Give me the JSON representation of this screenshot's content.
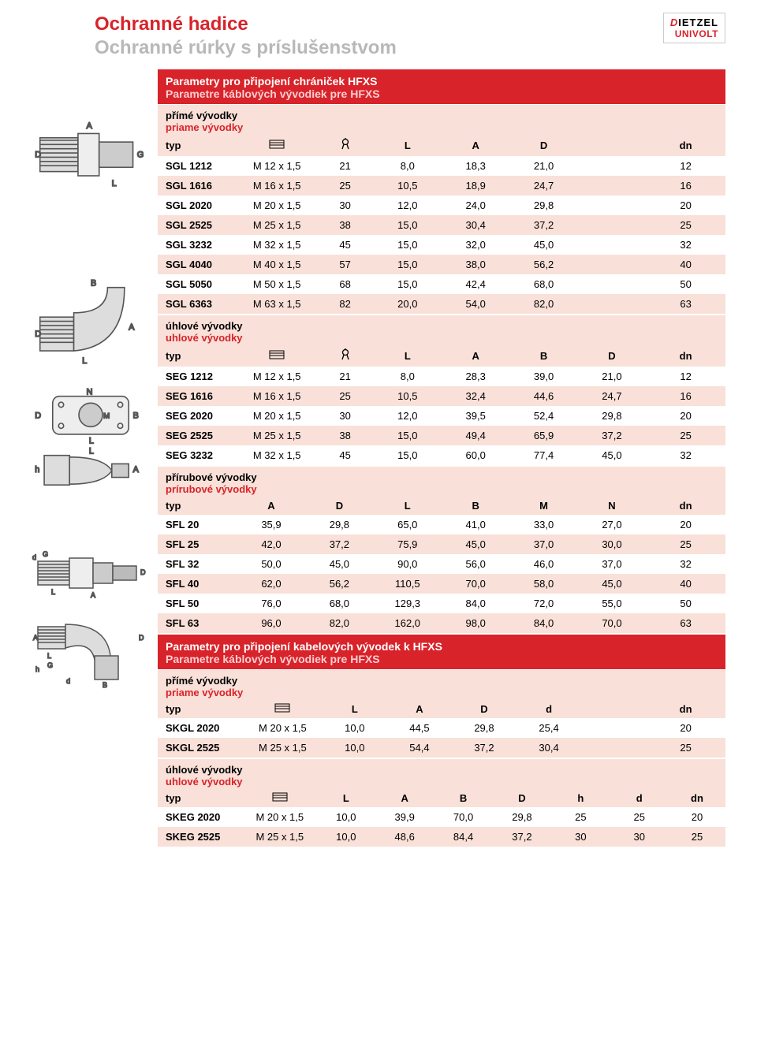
{
  "header": {
    "title_line1": "Ochranné hadice",
    "title_line2": "Ochranné rúrky s príslušenstvom",
    "logo_top": "DIETZEL",
    "logo_bottom": "UNIVOLT"
  },
  "colors": {
    "accent": "#d8232a",
    "subhead_bg": "#f9e0d8",
    "text": "#000000",
    "bg": "#ffffff",
    "grey": "#b8b8b8"
  },
  "section1": {
    "title_cs": "Parametry pro připojení chrániček HFXS",
    "title_sk": "Parametre káblových vývodiek pre HFXS"
  },
  "section2": {
    "title_cs": "Parametry pro připojení kabelových vývodek k HFXS",
    "title_sk": "Parametre káblových vývodiek pre HFXS"
  },
  "tables": {
    "sgl": {
      "sub_cs": "přímé vývodky",
      "sub_sk": "priame vývodky",
      "cols": [
        "typ",
        "thread",
        "wrench",
        "L",
        "A",
        "D",
        "",
        "dn"
      ],
      "rows": [
        [
          "SGL 1212",
          "M 12 x 1,5",
          "21",
          "8,0",
          "18,3",
          "21,0",
          "",
          "12"
        ],
        [
          "SGL 1616",
          "M 16 x 1,5",
          "25",
          "10,5",
          "18,9",
          "24,7",
          "",
          "16"
        ],
        [
          "SGL 2020",
          "M 20 x 1,5",
          "30",
          "12,0",
          "24,0",
          "29,8",
          "",
          "20"
        ],
        [
          "SGL 2525",
          "M 25 x 1,5",
          "38",
          "15,0",
          "30,4",
          "37,2",
          "",
          "25"
        ],
        [
          "SGL 3232",
          "M 32 x 1,5",
          "45",
          "15,0",
          "32,0",
          "45,0",
          "",
          "32"
        ],
        [
          "SGL 4040",
          "M 40 x 1,5",
          "57",
          "15,0",
          "38,0",
          "56,2",
          "",
          "40"
        ],
        [
          "SGL 5050",
          "M 50 x 1,5",
          "68",
          "15,0",
          "42,4",
          "68,0",
          "",
          "50"
        ],
        [
          "SGL 6363",
          "M 63 x 1,5",
          "82",
          "20,0",
          "54,0",
          "82,0",
          "",
          "63"
        ]
      ]
    },
    "seg": {
      "sub_cs": "úhlové vývodky",
      "sub_sk": "uhlové vývodky",
      "cols": [
        "typ",
        "thread",
        "wrench",
        "L",
        "A",
        "B",
        "D",
        "dn"
      ],
      "rows": [
        [
          "SEG 1212",
          "M 12 x 1,5",
          "21",
          "8,0",
          "28,3",
          "39,0",
          "21,0",
          "12"
        ],
        [
          "SEG 1616",
          "M 16 x 1,5",
          "25",
          "10,5",
          "32,4",
          "44,6",
          "24,7",
          "16"
        ],
        [
          "SEG 2020",
          "M 20 x 1,5",
          "30",
          "12,0",
          "39,5",
          "52,4",
          "29,8",
          "20"
        ],
        [
          "SEG 2525",
          "M 25 x 1,5",
          "38",
          "15,0",
          "49,4",
          "65,9",
          "37,2",
          "25"
        ],
        [
          "SEG 3232",
          "M 32 x 1,5",
          "45",
          "15,0",
          "60,0",
          "77,4",
          "45,0",
          "32"
        ]
      ]
    },
    "sfl": {
      "sub_cs": "přírubové vývodky",
      "sub_sk": "prírubové vývodky",
      "cols": [
        "typ",
        "A",
        "D",
        "L",
        "B",
        "M",
        "N",
        "dn"
      ],
      "rows": [
        [
          "SFL 20",
          "35,9",
          "29,8",
          "65,0",
          "41,0",
          "33,0",
          "27,0",
          "20"
        ],
        [
          "SFL 25",
          "42,0",
          "37,2",
          "75,9",
          "45,0",
          "37,0",
          "30,0",
          "25"
        ],
        [
          "SFL 32",
          "50,0",
          "45,0",
          "90,0",
          "56,0",
          "46,0",
          "37,0",
          "32"
        ],
        [
          "SFL 40",
          "62,0",
          "56,2",
          "110,5",
          "70,0",
          "58,0",
          "45,0",
          "40"
        ],
        [
          "SFL 50",
          "76,0",
          "68,0",
          "129,3",
          "84,0",
          "72,0",
          "55,0",
          "50"
        ],
        [
          "SFL 63",
          "96,0",
          "82,0",
          "162,0",
          "98,0",
          "84,0",
          "70,0",
          "63"
        ]
      ]
    },
    "skgl": {
      "sub_cs": "přímé vývodky",
      "sub_sk": "priame vývodky",
      "cols": [
        "typ",
        "thread",
        "L",
        "A",
        "D",
        "d",
        "",
        "dn"
      ],
      "rows": [
        [
          "SKGL 2020",
          "M 20 x 1,5",
          "10,0",
          "44,5",
          "29,8",
          "25,4",
          "",
          "20"
        ],
        [
          "SKGL 2525",
          "M 25 x 1,5",
          "10,0",
          "54,4",
          "37,2",
          "30,4",
          "",
          "25"
        ]
      ]
    },
    "skeg": {
      "sub_cs": "úhlové vývodky",
      "sub_sk": "uhlové vývodky",
      "cols": [
        "typ",
        "thread",
        "L",
        "A",
        "B",
        "D",
        "h",
        "d",
        "dn"
      ],
      "rows": [
        [
          "SKEG 2020",
          "M 20 x 1,5",
          "10,0",
          "39,9",
          "70,0",
          "29,8",
          "25",
          "25",
          "20"
        ],
        [
          "SKEG 2525",
          "M 25 x 1,5",
          "10,0",
          "48,6",
          "84,4",
          "37,2",
          "30",
          "30",
          "25"
        ]
      ]
    }
  },
  "labels": {
    "typ": "typ",
    "L": "L",
    "A": "A",
    "B": "B",
    "D": "D",
    "d": "d",
    "h": "h",
    "M": "M",
    "N": "N",
    "dn": "dn"
  }
}
